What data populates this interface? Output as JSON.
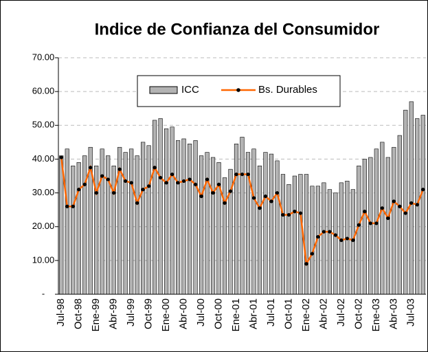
{
  "chart_data": {
    "type": "bar_line",
    "title": "Indice de Confianza del Consumidor",
    "categories": [
      "Jul-98",
      null,
      null,
      "Oct-98",
      null,
      null,
      "Ene-99",
      null,
      null,
      "Abr-99",
      null,
      null,
      "Jul-99",
      null,
      null,
      "Oct-99",
      null,
      null,
      "Ene-00",
      null,
      null,
      "Abr-00",
      null,
      null,
      "Jul-00",
      null,
      null,
      "Oct-00",
      null,
      null,
      "Ene-01",
      null,
      null,
      "Abr-01",
      null,
      null,
      "Jul-01",
      null,
      null,
      "Oct-01",
      null,
      null,
      "Ene-02",
      null,
      null,
      "Abr-02",
      null,
      null,
      "Jul-02",
      null,
      null,
      "Oct-02",
      null,
      null,
      "Ene-03",
      null,
      null,
      "Abr-03",
      null,
      null,
      "Jul-03",
      null,
      null
    ],
    "series": [
      {
        "name": "ICC",
        "color": "#b3b3b3",
        "values": [
          41,
          43,
          38,
          39,
          41,
          43.5,
          38,
          43,
          41,
          38,
          43.5,
          42,
          43,
          41,
          45,
          44,
          51.5,
          52,
          49,
          49.5,
          45.5,
          46,
          44.5,
          45.5,
          41,
          42,
          40.5,
          39,
          34.5,
          37,
          44.5,
          46.5,
          42,
          43,
          38,
          42,
          41.5,
          39.5,
          35.5,
          32.5,
          35,
          35.5,
          35.5,
          32,
          32,
          33,
          31,
          30,
          33,
          33.5,
          31,
          38,
          40,
          40.5,
          43,
          45,
          40.5,
          43.5,
          47,
          54.5,
          57,
          52,
          53
        ]
      },
      {
        "name": "Bs. Durables",
        "color": "#ff6600",
        "values": [
          40.5,
          26,
          26,
          31,
          32.5,
          37.5,
          30,
          35,
          34,
          30,
          37,
          33.5,
          33,
          27,
          31,
          32,
          37.5,
          34.5,
          33,
          35.5,
          33,
          33.5,
          34,
          32.5,
          29,
          34,
          30,
          32.5,
          27,
          30.5,
          35.5,
          35.5,
          35.5,
          28.5,
          25.5,
          29,
          27.5,
          30,
          23.5,
          23.5,
          24.5,
          24,
          9,
          12,
          17,
          18.5,
          18.5,
          17.5,
          16,
          16.5,
          16,
          20.5,
          24.5,
          21,
          21,
          25.5,
          22.5,
          27.5,
          26,
          24,
          27,
          26.5,
          31
        ]
      }
    ],
    "ylim": [
      0,
      70
    ],
    "yticks": [
      {
        "value": 0,
        "label": "-"
      },
      {
        "value": 10,
        "label": "10.00"
      },
      {
        "value": 20,
        "label": "20.00"
      },
      {
        "value": 30,
        "label": "30.00"
      },
      {
        "value": 40,
        "label": "40.00"
      },
      {
        "value": 50,
        "label": "50.00"
      },
      {
        "value": 60,
        "label": "60.00"
      },
      {
        "value": 70,
        "label": "70.00"
      }
    ],
    "grid": true
  }
}
